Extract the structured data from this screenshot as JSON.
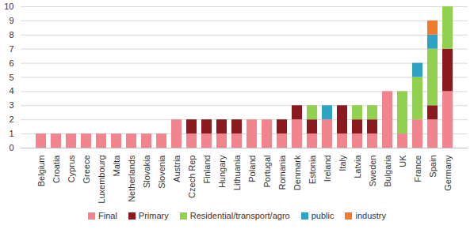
{
  "chart_data": {
    "type": "bar",
    "stacked": true,
    "grid": true,
    "legend": "bottom",
    "categories": [
      "Belgium",
      "Croatia",
      "Cyprus",
      "Greece",
      "Luxembourg",
      "Malta",
      "Netherlands",
      "Slovakia",
      "Slovenia",
      "Austria",
      "Czech Rep",
      "Finland",
      "Hungary",
      "Lithuania",
      "Poland",
      "Portugal",
      "Romania",
      "Denmark",
      "Estonia",
      "Ireland",
      "Italy",
      "Latvia",
      "Sweden",
      "Bulgaria",
      "UK",
      "France",
      "Spain",
      "Germany"
    ],
    "series": [
      {
        "name": "Final",
        "color": "#f2848d",
        "values": [
          1,
          1,
          1,
          1,
          1,
          1,
          1,
          1,
          1,
          2,
          1,
          1,
          1,
          1,
          2,
          2,
          1,
          2,
          1,
          2,
          1,
          1,
          1,
          4,
          1,
          2,
          2,
          4
        ]
      },
      {
        "name": "Primary",
        "color": "#8b1a1f",
        "values": [
          0,
          0,
          0,
          0,
          0,
          0,
          0,
          0,
          0,
          0,
          1,
          1,
          1,
          1,
          0,
          0,
          1,
          1,
          1,
          0,
          2,
          1,
          1,
          0,
          0,
          0,
          1,
          3
        ]
      },
      {
        "name": "Residential/transport/agro",
        "color": "#92d050",
        "values": [
          0,
          0,
          0,
          0,
          0,
          0,
          0,
          0,
          0,
          0,
          0,
          0,
          0,
          0,
          0,
          0,
          0,
          0,
          1,
          0,
          0,
          1,
          1,
          0,
          3,
          3,
          4,
          3
        ]
      },
      {
        "name": "public",
        "color": "#2fa3c3",
        "values": [
          0,
          0,
          0,
          0,
          0,
          0,
          0,
          0,
          0,
          0,
          0,
          0,
          0,
          0,
          0,
          0,
          0,
          0,
          0,
          1,
          0,
          0,
          0,
          0,
          0,
          1,
          1,
          0
        ]
      },
      {
        "name": "industry",
        "color": "#f07a2e",
        "values": [
          0,
          0,
          0,
          0,
          0,
          0,
          0,
          0,
          0,
          0,
          0,
          0,
          0,
          0,
          0,
          0,
          0,
          0,
          0,
          0,
          0,
          0,
          0,
          0,
          0,
          0,
          1,
          0
        ]
      }
    ],
    "ylim": [
      0,
      10
    ],
    "yticks": [
      0,
      1,
      2,
      3,
      4,
      5,
      6,
      7,
      8,
      9,
      10
    ]
  }
}
